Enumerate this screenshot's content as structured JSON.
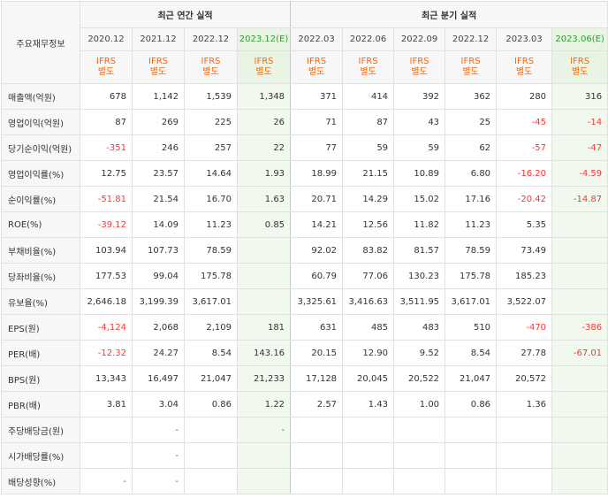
{
  "header": {
    "label": "주요재무정보",
    "annual_title": "최근 연간 실적",
    "quarterly_title": "최근 분기 실적",
    "accounting_line1": "IFRS",
    "accounting_line2": "별도"
  },
  "periods": [
    {
      "label": "2020.12",
      "estimate": false
    },
    {
      "label": "2021.12",
      "estimate": false
    },
    {
      "label": "2022.12",
      "estimate": false
    },
    {
      "label": "2023.12(E)",
      "estimate": true
    },
    {
      "label": "2022.03",
      "estimate": false
    },
    {
      "label": "2022.06",
      "estimate": false
    },
    {
      "label": "2022.09",
      "estimate": false
    },
    {
      "label": "2022.12",
      "estimate": false
    },
    {
      "label": "2023.03",
      "estimate": false
    },
    {
      "label": "2023.06(E)",
      "estimate": true
    }
  ],
  "rows": [
    {
      "label": "매출액(억원)",
      "section_start": true,
      "values": [
        "678",
        "1,142",
        "1,539",
        "1,348",
        "371",
        "414",
        "392",
        "362",
        "280",
        "316"
      ]
    },
    {
      "label": "영업이익(억원)",
      "section_start": false,
      "values": [
        "87",
        "269",
        "225",
        "26",
        "71",
        "87",
        "43",
        "25",
        "-45",
        "-14"
      ]
    },
    {
      "label": "당기순이익(억원)",
      "section_start": false,
      "values": [
        "-351",
        "246",
        "257",
        "22",
        "77",
        "59",
        "59",
        "62",
        "-57",
        "-47"
      ]
    },
    {
      "label": "영업이익률(%)",
      "section_start": true,
      "values": [
        "12.75",
        "23.57",
        "14.64",
        "1.93",
        "18.99",
        "21.15",
        "10.89",
        "6.80",
        "-16.20",
        "-4.59"
      ]
    },
    {
      "label": "순이익률(%)",
      "section_start": false,
      "values": [
        "-51.81",
        "21.54",
        "16.70",
        "1.63",
        "20.71",
        "14.29",
        "15.02",
        "17.16",
        "-20.42",
        "-14.87"
      ]
    },
    {
      "label": "ROE(%)",
      "section_start": false,
      "values": [
        "-39.12",
        "14.09",
        "11.23",
        "0.85",
        "14.21",
        "12.56",
        "11.82",
        "11.23",
        "5.35",
        ""
      ]
    },
    {
      "label": "부채비율(%)",
      "section_start": true,
      "values": [
        "103.94",
        "107.73",
        "78.59",
        "",
        "92.02",
        "83.82",
        "81.57",
        "78.59",
        "73.49",
        ""
      ]
    },
    {
      "label": "당좌비율(%)",
      "section_start": false,
      "values": [
        "177.53",
        "99.04",
        "175.78",
        "",
        "60.79",
        "77.06",
        "130.23",
        "175.78",
        "185.23",
        ""
      ]
    },
    {
      "label": "유보율(%)",
      "section_start": false,
      "values": [
        "2,646.18",
        "3,199.39",
        "3,617.01",
        "",
        "3,325.61",
        "3,416.63",
        "3,511.95",
        "3,617.01",
        "3,522.07",
        ""
      ]
    },
    {
      "label": "EPS(원)",
      "section_start": true,
      "values": [
        "-4,124",
        "2,068",
        "2,109",
        "181",
        "631",
        "485",
        "483",
        "510",
        "-470",
        "-386"
      ]
    },
    {
      "label": "PER(배)",
      "section_start": false,
      "values": [
        "-12.32",
        "24.27",
        "8.54",
        "143.16",
        "20.15",
        "12.90",
        "9.52",
        "8.54",
        "27.78",
        "-67.01"
      ]
    },
    {
      "label": "BPS(원)",
      "section_start": false,
      "values": [
        "13,343",
        "16,497",
        "21,047",
        "21,233",
        "17,128",
        "20,045",
        "20,522",
        "21,047",
        "20,572",
        ""
      ]
    },
    {
      "label": "PBR(배)",
      "section_start": false,
      "values": [
        "3.81",
        "3.04",
        "0.86",
        "1.22",
        "2.57",
        "1.43",
        "1.00",
        "0.86",
        "1.36",
        ""
      ]
    },
    {
      "label": "주당배당금(원)",
      "section_start": true,
      "values": [
        "",
        "-",
        "",
        "-",
        "",
        "",
        "",
        "",
        "",
        ""
      ]
    },
    {
      "label": "시가배당률(%)",
      "section_start": false,
      "values": [
        "",
        "-",
        "",
        "",
        "",
        "",
        "",
        "",
        "",
        ""
      ]
    },
    {
      "label": "배당성향(%)",
      "section_start": false,
      "values": [
        "-",
        "-",
        "",
        "",
        "",
        "",
        "",
        "",
        "",
        ""
      ]
    }
  ],
  "colors": {
    "negative": "#ff3333",
    "ifrs": "#ff6600",
    "estimate_bg": "#f1f9ee",
    "estimate_period": "#339933"
  }
}
